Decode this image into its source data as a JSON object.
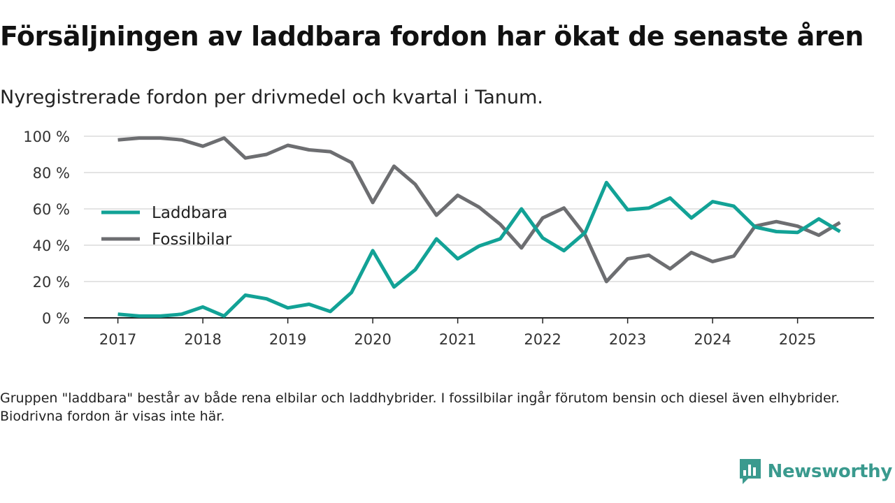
{
  "title": "Försäljningen av laddbara fordon har ökat de senaste åren",
  "subtitle": "Nyregistrerade fordon per drivmedel och kvartal i Tanum.",
  "footnote": "Gruppen \"laddbara\" består av både rena elbilar och laddhybrider. I fossilbilar ingår förutom bensin och diesel även elhybrider. Biodrivna fordon är visas inte här.",
  "brand": {
    "name": "Newsworthy",
    "color": "#3a9a8e",
    "icon": "chart-speech-bubble-icon"
  },
  "chart_data": {
    "type": "line",
    "title": "Försäljningen av laddbara fordon har ökat de senaste åren",
    "xlabel": "",
    "ylabel": "",
    "x": [
      2017.0,
      2017.25,
      2017.5,
      2017.75,
      2018.0,
      2018.25,
      2018.5,
      2018.75,
      2019.0,
      2019.25,
      2019.5,
      2019.75,
      2020.0,
      2020.25,
      2020.5,
      2020.75,
      2021.0,
      2021.25,
      2021.5,
      2021.75,
      2022.0,
      2022.25,
      2022.5,
      2022.75,
      2023.0,
      2023.25,
      2023.5,
      2023.75,
      2024.0,
      2024.25,
      2024.5,
      2024.75,
      2025.0,
      2025.25,
      2025.5
    ],
    "xlim": [
      2016.6,
      2025.9
    ],
    "ylim": [
      0,
      100
    ],
    "x_ticks": [
      2017,
      2018,
      2019,
      2020,
      2021,
      2022,
      2023,
      2024,
      2025
    ],
    "x_tick_labels": [
      "2017",
      "2018",
      "2019",
      "2020",
      "2021",
      "2022",
      "2023",
      "2024",
      "2025"
    ],
    "y_ticks": [
      0,
      20,
      40,
      60,
      80,
      100
    ],
    "y_tick_labels": [
      "0 %",
      "20 %",
      "40 %",
      "60 %",
      "80 %",
      "100 %"
    ],
    "grid": true,
    "legend_position": "left",
    "series": [
      {
        "name": "Laddbara",
        "color": "#12a296",
        "values": [
          2,
          1,
          1,
          2,
          6,
          1,
          12.5,
          10.5,
          5.5,
          7.5,
          3.5,
          14,
          37,
          17,
          26.5,
          43.5,
          32.5,
          39.5,
          43.5,
          60,
          44,
          37,
          47,
          74.5,
          59.5,
          60.5,
          66,
          55,
          64,
          61.5,
          50,
          47.5,
          47,
          54.5,
          47.5
        ]
      },
      {
        "name": "Fossilbilar",
        "color": "#6d6e71",
        "values": [
          98,
          99,
          99,
          98,
          94.5,
          99,
          88,
          90,
          95,
          92.5,
          91.5,
          85.5,
          63.5,
          83.5,
          73.5,
          56.5,
          67.5,
          61,
          51.5,
          38.5,
          55,
          60.5,
          45.5,
          20,
          32.5,
          34.5,
          27,
          36,
          31,
          34,
          50.5,
          53,
          50.5,
          45.5,
          52.5
        ]
      }
    ]
  }
}
